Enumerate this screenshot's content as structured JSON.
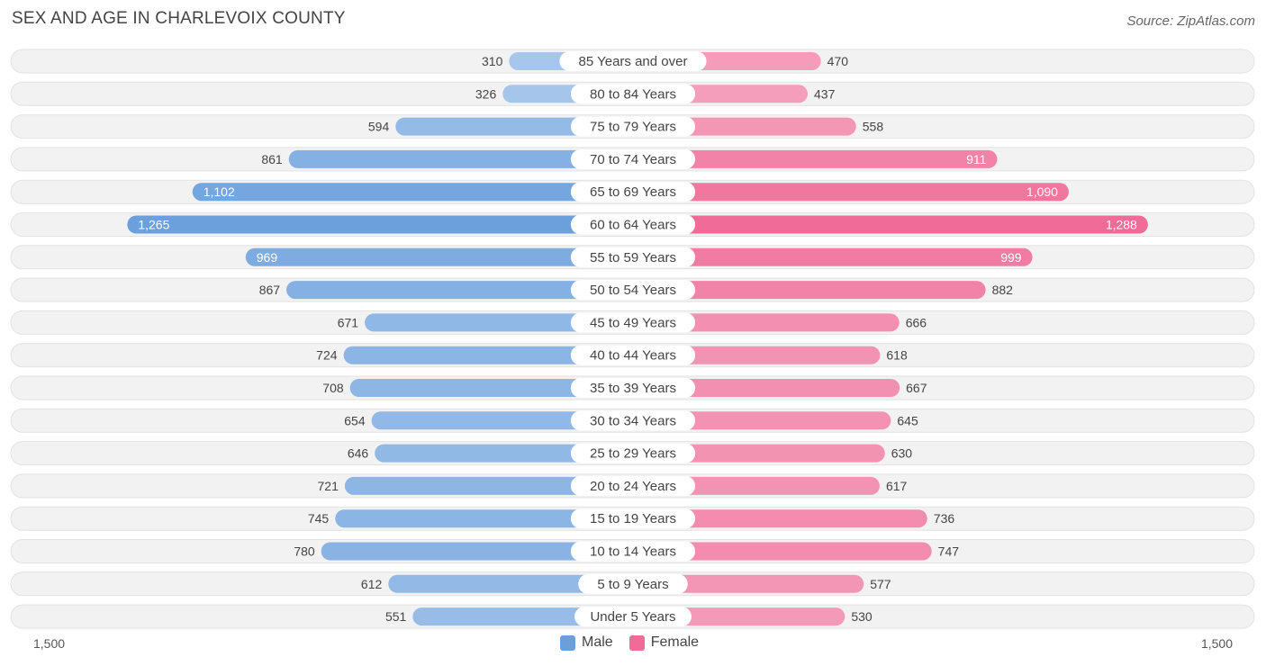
{
  "title": "SEX AND AGE IN CHARLEVOIX COUNTY",
  "source": "Source: ZipAtlas.com",
  "colors": {
    "male": "#6a9fdc",
    "male_light": "#a9c8ec",
    "female": "#f06b97",
    "female_light": "#f5a9c2"
  },
  "chart_data": {
    "type": "bar",
    "orientation": "horizontal-diverging",
    "title": "SEX AND AGE IN CHARLEVOIX COUNTY",
    "categories": [
      "85 Years and over",
      "80 to 84 Years",
      "75 to 79 Years",
      "70 to 74 Years",
      "65 to 69 Years",
      "60 to 64 Years",
      "55 to 59 Years",
      "50 to 54 Years",
      "45 to 49 Years",
      "40 to 44 Years",
      "35 to 39 Years",
      "30 to 34 Years",
      "25 to 29 Years",
      "20 to 24 Years",
      "15 to 19 Years",
      "10 to 14 Years",
      "5 to 9 Years",
      "Under 5 Years"
    ],
    "series": [
      {
        "name": "Male",
        "values": [
          310,
          326,
          594,
          861,
          1102,
          1265,
          969,
          867,
          671,
          724,
          708,
          654,
          646,
          721,
          745,
          780,
          612,
          551
        ],
        "labels": [
          "310",
          "326",
          "594",
          "861",
          "1,102",
          "1,265",
          "969",
          "867",
          "671",
          "724",
          "708",
          "654",
          "646",
          "721",
          "745",
          "780",
          "612",
          "551"
        ]
      },
      {
        "name": "Female",
        "values": [
          470,
          437,
          558,
          911,
          1090,
          1288,
          999,
          882,
          666,
          618,
          667,
          645,
          630,
          617,
          736,
          747,
          577,
          530
        ],
        "labels": [
          "470",
          "437",
          "558",
          "911",
          "1,090",
          "1,288",
          "999",
          "882",
          "666",
          "618",
          "667",
          "645",
          "630",
          "617",
          "736",
          "747",
          "577",
          "530"
        ]
      }
    ],
    "xlim": [
      -1500,
      1500
    ],
    "axis_labels": {
      "left": "1,500",
      "right": "1,500"
    },
    "legend": [
      "Male",
      "Female"
    ],
    "legend_position": "bottom-center"
  }
}
